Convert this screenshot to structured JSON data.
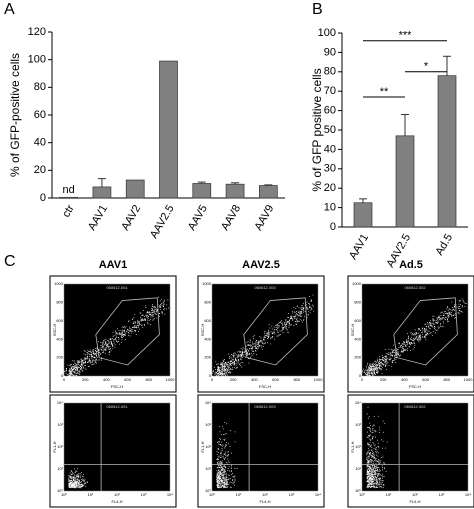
{
  "chart_data": [
    {
      "type": "bar",
      "panel": "A",
      "ylabel": "% of GFP-positive cells",
      "categories": [
        "ctr",
        "AAV1",
        "AAV2",
        "AAV2.5",
        "AAV5",
        "AAV8",
        "AAV9"
      ],
      "values": [
        0.5,
        8,
        13,
        99,
        10.5,
        10,
        9
      ],
      "errors": [
        null,
        6,
        null,
        null,
        1,
        1,
        0.5
      ],
      "annotations": [
        {
          "text": "nd",
          "category": 0
        }
      ],
      "color": "#808080",
      "ylim": [
        0,
        120
      ],
      "yticks": [
        0,
        20,
        40,
        60,
        80,
        100,
        120
      ]
    },
    {
      "type": "bar",
      "panel": "B",
      "ylabel": "% of GFP positive cells",
      "categories": [
        "AAV1",
        "AAV2.5",
        "Ad.5"
      ],
      "values": [
        12.5,
        47,
        78
      ],
      "errors": [
        2,
        11,
        10
      ],
      "significance": [
        {
          "from": 0,
          "to": 1,
          "label": "**"
        },
        {
          "from": 0,
          "to": 2,
          "label": "***"
        },
        {
          "from": 1,
          "to": 2,
          "label": "*"
        }
      ],
      "color": "#808080",
      "ylim": [
        0,
        100
      ],
      "yticks": [
        0,
        10,
        20,
        30,
        40,
        50,
        60,
        70,
        80,
        90,
        100
      ]
    }
  ],
  "panel_c": {
    "label": "C",
    "columns": [
      {
        "title": "AAV1",
        "plots": [
          {
            "id": "060612.001",
            "xlabel": "FSC-H",
            "ylabel": "SSC-H"
          },
          {
            "id": "060612.001",
            "xlabel": "FL4-H",
            "ylabel": "FL1-H"
          }
        ]
      },
      {
        "title": "AAV2.5",
        "plots": [
          {
            "id": "060612.003",
            "xlabel": "FSC-H",
            "ylabel": "SSC-H"
          },
          {
            "id": "060612.003",
            "xlabel": "FL4-H",
            "ylabel": "FL1-H"
          }
        ]
      },
      {
        "title": "Ad.5",
        "plots": [
          {
            "id": "060612.002",
            "xlabel": "FSC-H",
            "ylabel": "SSC-H"
          },
          {
            "id": "060612.002",
            "xlabel": "FL4-H",
            "ylabel": "FL1-H"
          }
        ]
      }
    ],
    "linear_ticks": [
      "0",
      "200",
      "400",
      "600",
      "800",
      "1000"
    ],
    "log_ticks": [
      "10⁰",
      "10¹",
      "10²",
      "10³",
      "10⁴"
    ]
  }
}
